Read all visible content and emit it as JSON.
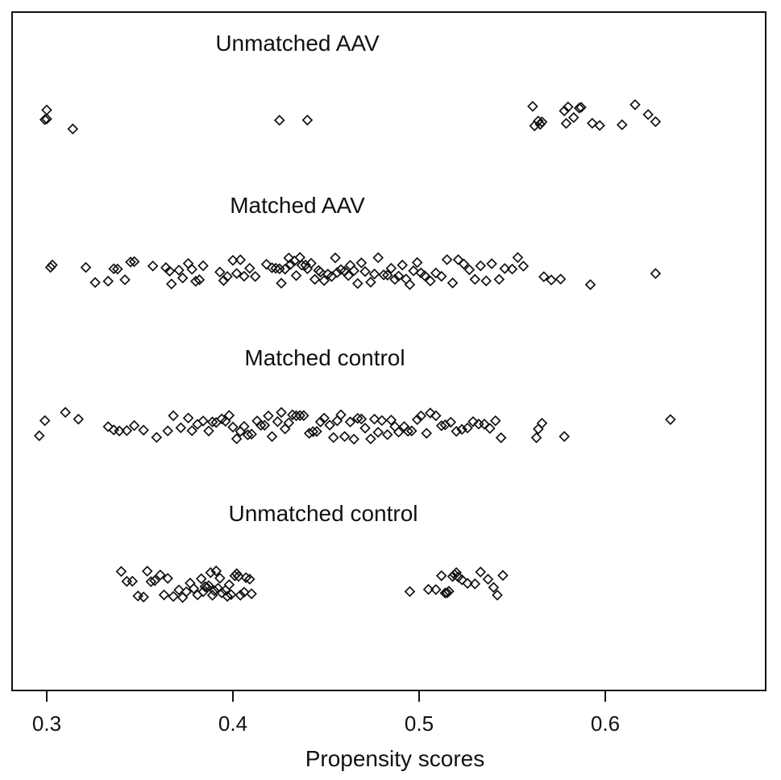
{
  "chart_data": {
    "type": "scatter",
    "xlabel": "Propensity scores",
    "xlim": [
      0.2825,
      0.6825
    ],
    "xticks": [
      0.3,
      0.4,
      0.5,
      0.6
    ],
    "xtick_labels": [
      "0.3",
      "0.4",
      "0.5",
      "0.6"
    ],
    "grid": false,
    "marker": "diamond",
    "groups": [
      {
        "name": "Unmatched AAV",
        "values": [
          0.299,
          0.3,
          0.3,
          0.314,
          0.425,
          0.44,
          0.561,
          0.562,
          0.564,
          0.565,
          0.566,
          0.578,
          0.579,
          0.58,
          0.583,
          0.586,
          0.587,
          0.593,
          0.597,
          0.609,
          0.616,
          0.623,
          0.627
        ]
      },
      {
        "name": "Matched AAV",
        "values": [
          0.302,
          0.303,
          0.321,
          0.326,
          0.333,
          0.336,
          0.338,
          0.342,
          0.345,
          0.347,
          0.357,
          0.364,
          0.366,
          0.367,
          0.371,
          0.373,
          0.376,
          0.378,
          0.38,
          0.382,
          0.384,
          0.393,
          0.395,
          0.397,
          0.4,
          0.402,
          0.404,
          0.406,
          0.409,
          0.412,
          0.418,
          0.421,
          0.423,
          0.425,
          0.426,
          0.428,
          0.43,
          0.431,
          0.433,
          0.434,
          0.436,
          0.437,
          0.439,
          0.44,
          0.442,
          0.444,
          0.446,
          0.447,
          0.449,
          0.451,
          0.453,
          0.455,
          0.456,
          0.458,
          0.46,
          0.462,
          0.463,
          0.465,
          0.467,
          0.469,
          0.471,
          0.474,
          0.476,
          0.478,
          0.481,
          0.483,
          0.485,
          0.487,
          0.489,
          0.491,
          0.493,
          0.495,
          0.497,
          0.499,
          0.501,
          0.503,
          0.506,
          0.509,
          0.512,
          0.515,
          0.518,
          0.521,
          0.524,
          0.527,
          0.53,
          0.533,
          0.536,
          0.539,
          0.543,
          0.546,
          0.55,
          0.553,
          0.556,
          0.567,
          0.571,
          0.576,
          0.592,
          0.627
        ]
      },
      {
        "name": "Matched control",
        "values": [
          0.296,
          0.299,
          0.31,
          0.317,
          0.333,
          0.336,
          0.339,
          0.343,
          0.347,
          0.352,
          0.359,
          0.365,
          0.368,
          0.372,
          0.376,
          0.378,
          0.381,
          0.384,
          0.387,
          0.389,
          0.391,
          0.394,
          0.396,
          0.398,
          0.4,
          0.402,
          0.404,
          0.406,
          0.408,
          0.41,
          0.413,
          0.415,
          0.417,
          0.419,
          0.421,
          0.424,
          0.426,
          0.428,
          0.43,
          0.432,
          0.434,
          0.436,
          0.438,
          0.441,
          0.443,
          0.445,
          0.447,
          0.449,
          0.452,
          0.454,
          0.456,
          0.458,
          0.46,
          0.463,
          0.465,
          0.467,
          0.469,
          0.471,
          0.474,
          0.476,
          0.478,
          0.48,
          0.483,
          0.485,
          0.487,
          0.489,
          0.492,
          0.494,
          0.496,
          0.499,
          0.501,
          0.504,
          0.506,
          0.509,
          0.512,
          0.514,
          0.517,
          0.52,
          0.523,
          0.526,
          0.529,
          0.532,
          0.535,
          0.538,
          0.541,
          0.544,
          0.563,
          0.564,
          0.566,
          0.578,
          0.635
        ]
      },
      {
        "name": "Unmatched control",
        "values": [
          0.34,
          0.343,
          0.346,
          0.349,
          0.352,
          0.354,
          0.356,
          0.358,
          0.361,
          0.363,
          0.365,
          0.368,
          0.371,
          0.373,
          0.375,
          0.377,
          0.379,
          0.381,
          0.383,
          0.384,
          0.385,
          0.386,
          0.387,
          0.388,
          0.389,
          0.39,
          0.391,
          0.392,
          0.393,
          0.394,
          0.396,
          0.397,
          0.398,
          0.399,
          0.401,
          0.402,
          0.403,
          0.404,
          0.406,
          0.407,
          0.409,
          0.41,
          0.495,
          0.505,
          0.509,
          0.512,
          0.514,
          0.515,
          0.516,
          0.518,
          0.519,
          0.52,
          0.521,
          0.523,
          0.526,
          0.53,
          0.533,
          0.537,
          0.54,
          0.542,
          0.545
        ]
      }
    ]
  }
}
